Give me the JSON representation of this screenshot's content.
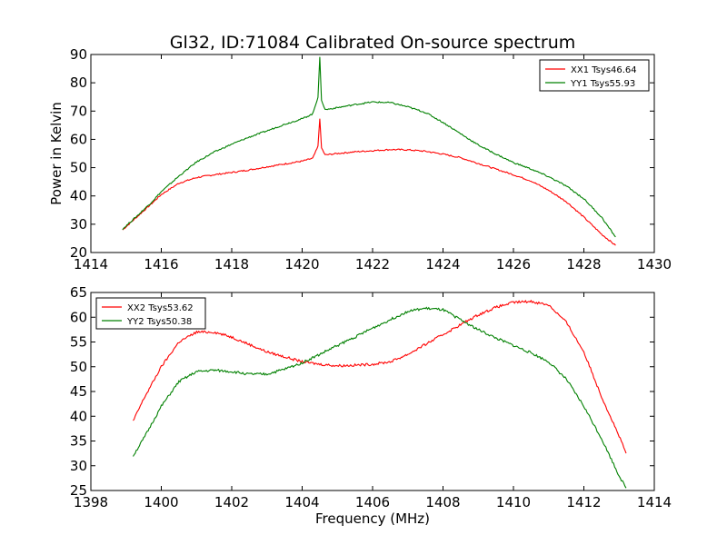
{
  "figure": {
    "title": "Gl32, ID:71084 Calibrated On-source spectrum"
  },
  "chart_data": [
    {
      "type": "line",
      "title": "Gl32, ID:71084 Calibrated On-source spectrum",
      "xlabel": "",
      "ylabel": "Power in Kelvin",
      "xlim": [
        1414,
        1430
      ],
      "ylim": [
        20,
        90
      ],
      "xticks": [
        1414,
        1416,
        1418,
        1420,
        1422,
        1424,
        1426,
        1428,
        1430
      ],
      "yticks": [
        20,
        30,
        40,
        50,
        60,
        70,
        80,
        90
      ],
      "grid": false,
      "legend_position": "top-right",
      "series": [
        {
          "name": "XX1 Tsys46.64",
          "color": "#ff0000",
          "x": [
            1414.9,
            1415.3,
            1415.7,
            1416.0,
            1416.5,
            1417.0,
            1417.5,
            1418.0,
            1418.5,
            1419.0,
            1419.5,
            1420.0,
            1420.3,
            1420.45,
            1420.5,
            1420.55,
            1420.65,
            1421.0,
            1421.5,
            1422.0,
            1422.5,
            1423.0,
            1423.5,
            1424.0,
            1424.5,
            1425.0,
            1425.5,
            1426.0,
            1426.5,
            1427.0,
            1427.5,
            1428.0,
            1428.5,
            1428.9
          ],
          "y": [
            28.0,
            32.5,
            37.0,
            40.5,
            44.5,
            46.5,
            47.5,
            48.3,
            49.2,
            50.3,
            51.3,
            52.3,
            53.3,
            57.5,
            67.5,
            57.0,
            54.5,
            55.0,
            55.6,
            56.0,
            56.4,
            56.3,
            55.8,
            54.8,
            53.5,
            51.5,
            49.5,
            47.5,
            45.3,
            42.0,
            38.0,
            32.5,
            26.5,
            22.5
          ]
        },
        {
          "name": "YY1 Tsys55.93",
          "color": "#008000",
          "x": [
            1414.9,
            1415.3,
            1415.7,
            1416.0,
            1416.5,
            1417.0,
            1417.5,
            1418.0,
            1418.5,
            1419.0,
            1419.5,
            1420.0,
            1420.3,
            1420.45,
            1420.5,
            1420.55,
            1420.65,
            1421.0,
            1421.5,
            1422.0,
            1422.5,
            1423.0,
            1423.5,
            1424.0,
            1424.5,
            1425.0,
            1425.5,
            1426.0,
            1426.5,
            1427.0,
            1427.5,
            1428.0,
            1428.5,
            1428.9
          ],
          "y": [
            28.3,
            32.8,
            37.5,
            41.5,
            47.0,
            52.0,
            55.5,
            58.3,
            60.8,
            63.0,
            65.3,
            67.3,
            69.0,
            75.0,
            89.0,
            74.0,
            70.5,
            71.2,
            72.3,
            73.2,
            73.0,
            71.5,
            69.5,
            66.0,
            62.0,
            58.0,
            54.8,
            51.8,
            49.5,
            46.8,
            43.5,
            39.0,
            32.5,
            25.5
          ]
        }
      ]
    },
    {
      "type": "line",
      "title": "",
      "xlabel": "Frequency (MHz)",
      "ylabel": "",
      "xlim": [
        1398,
        1414
      ],
      "ylim": [
        25,
        65
      ],
      "xticks": [
        1398,
        1400,
        1402,
        1404,
        1406,
        1408,
        1410,
        1412,
        1414
      ],
      "yticks": [
        25,
        30,
        35,
        40,
        45,
        50,
        55,
        60,
        65
      ],
      "grid": false,
      "legend_position": "top-left",
      "series": [
        {
          "name": "XX2 Tsys53.62",
          "color": "#ff0000",
          "x": [
            1399.2,
            1399.5,
            1400.0,
            1400.5,
            1401.0,
            1401.5,
            1402.0,
            1402.5,
            1403.0,
            1403.5,
            1404.0,
            1404.5,
            1405.0,
            1405.5,
            1406.0,
            1406.5,
            1407.0,
            1407.5,
            1408.0,
            1408.5,
            1409.0,
            1409.5,
            1410.0,
            1410.5,
            1411.0,
            1411.5,
            1412.0,
            1412.5,
            1413.0,
            1413.2
          ],
          "y": [
            39.0,
            43.5,
            50.0,
            55.0,
            57.0,
            57.0,
            56.0,
            54.5,
            53.0,
            52.0,
            51.0,
            50.5,
            50.2,
            50.3,
            50.5,
            51.0,
            52.5,
            54.5,
            56.5,
            58.5,
            60.5,
            62.0,
            63.0,
            63.2,
            62.5,
            59.0,
            53.0,
            44.0,
            36.0,
            32.5
          ]
        },
        {
          "name": "YY2 Tsys50.38",
          "color": "#008000",
          "x": [
            1399.2,
            1399.5,
            1400.0,
            1400.5,
            1401.0,
            1401.5,
            1402.0,
            1402.5,
            1403.0,
            1403.5,
            1404.0,
            1404.5,
            1405.0,
            1405.5,
            1406.0,
            1406.5,
            1407.0,
            1407.5,
            1408.0,
            1408.5,
            1409.0,
            1409.5,
            1410.0,
            1410.5,
            1411.0,
            1411.5,
            1412.0,
            1412.5,
            1413.0,
            1413.2
          ],
          "y": [
            32.0,
            35.5,
            42.0,
            47.0,
            49.0,
            49.3,
            49.0,
            48.5,
            48.5,
            49.5,
            50.8,
            52.5,
            54.3,
            56.0,
            57.8,
            59.5,
            61.2,
            61.8,
            61.5,
            59.5,
            57.5,
            55.8,
            54.3,
            52.8,
            51.0,
            47.5,
            42.0,
            35.5,
            28.0,
            25.5
          ]
        }
      ]
    }
  ]
}
